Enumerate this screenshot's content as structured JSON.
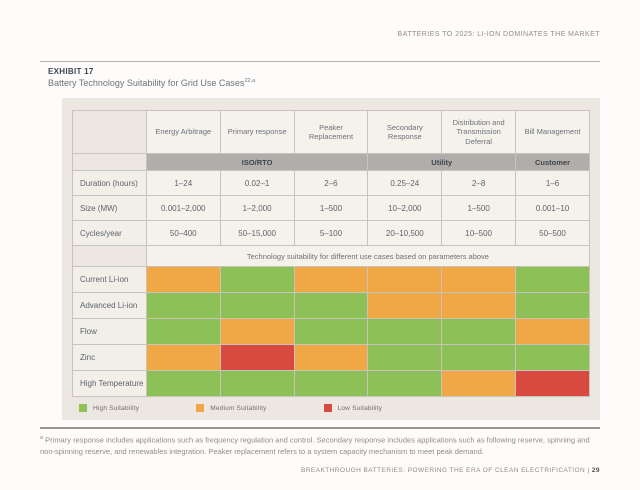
{
  "page": {
    "header_text": "BATTERIES TO 2025: LI-ION DOMINATES THE MARKET",
    "footer_text": "BREAKTHROUGH BATTERIES: POWERING THE ERA OF CLEAN ELECTRIFICATION",
    "footer_separator": "|",
    "footer_page_number": "29"
  },
  "exhibit": {
    "label": "EXHIBIT 17",
    "title": "Battery Technology Suitability for Grid Use Cases",
    "title_superscript": "22,a"
  },
  "colors": {
    "high": "#8dc057",
    "medium": "#f0a846",
    "low": "#d8493f"
  },
  "table": {
    "use_case_columns": [
      "Energy Arbitrage",
      "Primary response",
      "Peaker Replacement",
      "Secondary Response",
      "Distribution and Transmission Deferral",
      "Bill Management"
    ],
    "market_groups": [
      {
        "label": "ISO/RTO",
        "span": 3
      },
      {
        "label": "Utility",
        "span": 2
      },
      {
        "label": "Customer",
        "span": 1
      }
    ],
    "parameter_rows": [
      {
        "label": "Duration (hours)",
        "values": [
          "1–24",
          "0.02–1",
          "2–6",
          "0.25–24",
          "2–8",
          "1–6"
        ]
      },
      {
        "label": "Size (MW)",
        "values": [
          "0.001–2,000",
          "1–2,000",
          "1–500",
          "10–2,000",
          "1–500",
          "0.001–10"
        ]
      },
      {
        "label": "Cycles/year",
        "values": [
          "50–400",
          "50–15,000",
          "5–100",
          "20–10,500",
          "10–500",
          "50–500"
        ]
      }
    ],
    "suitability_note": "Technology suitability for different use cases based on parameters above",
    "technology_rows": [
      {
        "label": "Current Li-ion",
        "suitability": [
          "medium",
          "high",
          "medium",
          "medium",
          "medium",
          "high"
        ]
      },
      {
        "label": "Advanced Li-ion",
        "suitability": [
          "high",
          "high",
          "high",
          "medium",
          "medium",
          "high"
        ]
      },
      {
        "label": "Flow",
        "suitability": [
          "high",
          "medium",
          "high",
          "high",
          "high",
          "medium"
        ]
      },
      {
        "label": "Zinc",
        "suitability": [
          "medium",
          "low",
          "medium",
          "high",
          "high",
          "high"
        ]
      },
      {
        "label": "High Temperature",
        "suitability": [
          "high",
          "high",
          "high",
          "high",
          "medium",
          "low"
        ]
      }
    ],
    "legend": [
      {
        "label": "High Suitability",
        "level": "high"
      },
      {
        "label": "Medium Suitability",
        "level": "medium"
      },
      {
        "label": "Low Suitability",
        "level": "low"
      }
    ]
  },
  "footnote": {
    "marker": "a",
    "text": " Primary response includes applications such as frequency regulation and control. Secondary response includes applications such as following reserve, spinning and non-spinning reserve, and renewables integration. Peaker replacement refers to a system capacity mechanism to meet peak demand."
  }
}
